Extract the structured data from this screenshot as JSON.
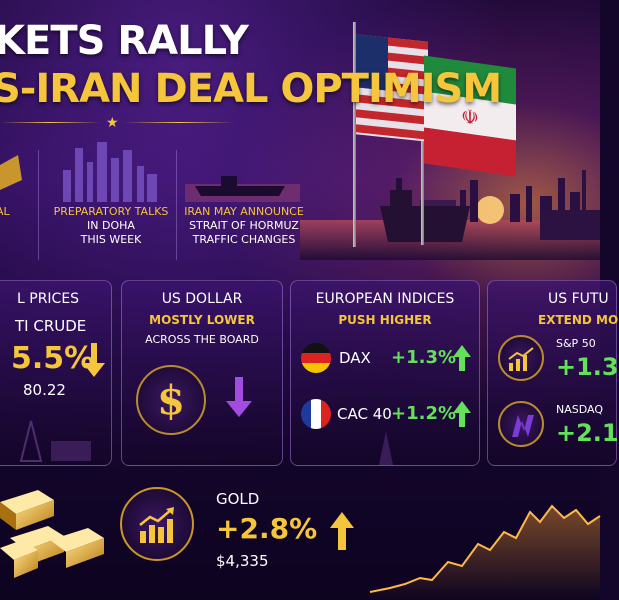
{
  "header": {
    "title_line1": "KETS RALLY",
    "title_line2": "S-IRAN DEAL OPTIMISM"
  },
  "stories": [
    {
      "line1": "AL",
      "line2": "",
      "line3": ""
    },
    {
      "line1": "PREPARATORY TALKS",
      "line2": "IN DOHA",
      "line3": "THIS WEEK"
    },
    {
      "line1": "IRAN MAY ANNOUNCE",
      "line2": "STRAIT OF HORMUZ",
      "line3": "TRAFFIC CHANGES"
    }
  ],
  "oil": {
    "title": "L PRICES",
    "label": "TI CRUDE",
    "change": "5.5%",
    "price": "80.22",
    "direction": "down"
  },
  "usd": {
    "title": "US DOLLAR",
    "sub": "MOSTLY LOWER",
    "note": "ACROSS THE BOARD",
    "icon": "dollar-icon",
    "direction": "down"
  },
  "europe": {
    "title": "EUROPEAN INDICES",
    "sub": "PUSH HIGHER",
    "rows": [
      {
        "name": "DAX",
        "change": "+1.3%",
        "flag": "germany-flag-icon",
        "direction": "up"
      },
      {
        "name": "CAC 40",
        "change": "+1.2%",
        "flag": "france-flag-icon",
        "direction": "up"
      }
    ]
  },
  "us_futures": {
    "title": "US FUTU",
    "sub": "EXTEND MO",
    "rows": [
      {
        "name": "S&P 50",
        "change": "+1.3",
        "icon": "chart-up-icon"
      },
      {
        "name": "NASDAQ",
        "change": "+2.1",
        "icon": "nasdaq-logo-icon"
      }
    ]
  },
  "gold": {
    "label": "GOLD",
    "change": "+2.8%",
    "price": "$4,335",
    "direction": "up",
    "icon": "chart-up-icon"
  },
  "colors": {
    "accent_gold": "#f5c53b",
    "up_green": "#64e05a",
    "bg_purple": "#1c0838"
  }
}
